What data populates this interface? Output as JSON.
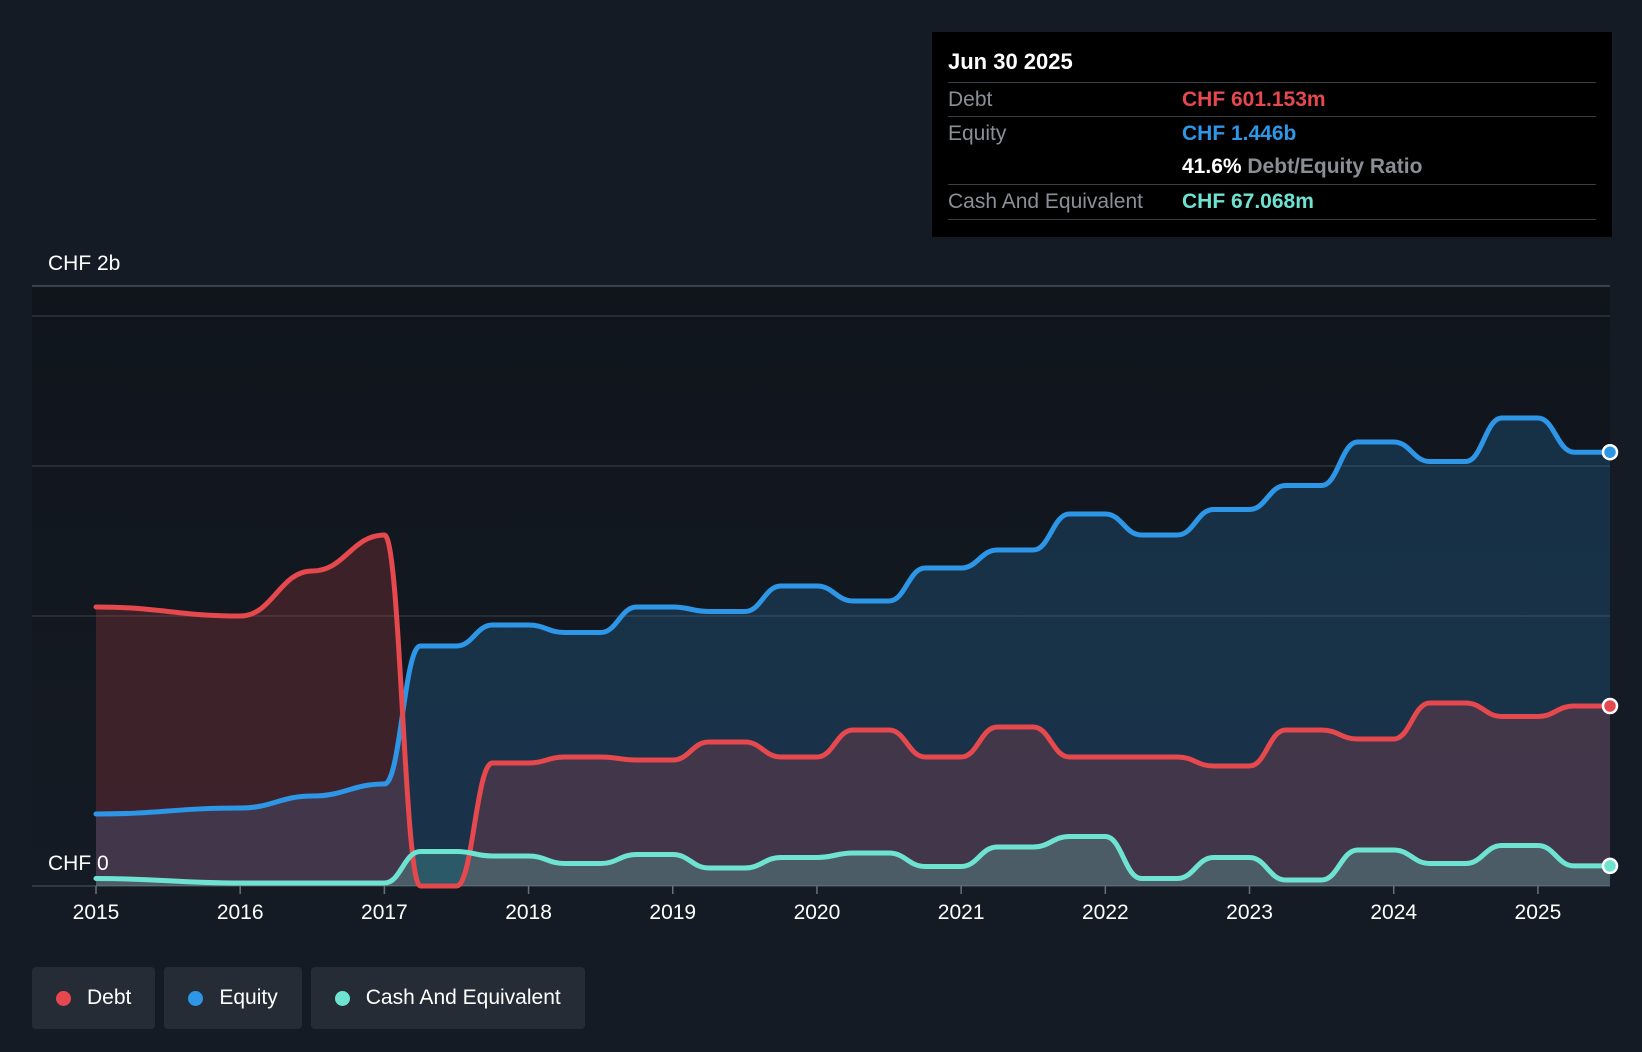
{
  "tooltip": {
    "date": "Jun 30 2025",
    "debt_label": "Debt",
    "debt_value": "CHF 601.153m",
    "equity_label": "Equity",
    "equity_value": "CHF 1.446b",
    "ratio_value": "41.6%",
    "ratio_label": "Debt/Equity Ratio",
    "cash_label": "Cash And Equivalent",
    "cash_value": "CHF 67.068m"
  },
  "legend": {
    "debt": "Debt",
    "equity": "Equity",
    "cash": "Cash And Equivalent"
  },
  "colors": {
    "debt": "#e5484d",
    "equity": "#2d96e6",
    "cash": "#6fe3d2",
    "background": "#151b24",
    "tooltip_bg": "#000000"
  },
  "chart_data": {
    "type": "area",
    "title": "",
    "xlabel": "",
    "ylabel": "",
    "ylim": [
      0,
      2.0
    ],
    "y_unit": "CHF b",
    "y_tick_labels": [
      {
        "value": 2.0,
        "label": "CHF 2b"
      },
      {
        "value": 0,
        "label": "CHF 0"
      }
    ],
    "gridlines": [
      1.9,
      1.4,
      0.9
    ],
    "x_ticks": [
      "2015",
      "2016",
      "2017",
      "2018",
      "2019",
      "2020",
      "2021",
      "2022",
      "2023",
      "2024",
      "2025"
    ],
    "xlim": [
      2015.0,
      2025.5
    ],
    "legend_position": "bottom-left",
    "grid": true,
    "series": [
      {
        "name": "Debt",
        "key": "debt",
        "points": [
          [
            2015.0,
            0.93
          ],
          [
            2016.0,
            0.9
          ],
          [
            2016.5,
            1.05
          ],
          [
            2017.0,
            1.17
          ],
          [
            2017.25,
            0.0
          ],
          [
            2017.5,
            0.0
          ],
          [
            2017.75,
            0.41
          ],
          [
            2018.0,
            0.41
          ],
          [
            2018.25,
            0.43
          ],
          [
            2018.5,
            0.43
          ],
          [
            2018.75,
            0.42
          ],
          [
            2019.0,
            0.42
          ],
          [
            2019.25,
            0.48
          ],
          [
            2019.5,
            0.48
          ],
          [
            2019.75,
            0.43
          ],
          [
            2020.0,
            0.43
          ],
          [
            2020.25,
            0.52
          ],
          [
            2020.5,
            0.52
          ],
          [
            2020.75,
            0.43
          ],
          [
            2021.0,
            0.43
          ],
          [
            2021.25,
            0.53
          ],
          [
            2021.5,
            0.53
          ],
          [
            2021.75,
            0.43
          ],
          [
            2022.0,
            0.43
          ],
          [
            2022.25,
            0.43
          ],
          [
            2022.5,
            0.43
          ],
          [
            2022.75,
            0.4
          ],
          [
            2023.0,
            0.4
          ],
          [
            2023.25,
            0.52
          ],
          [
            2023.5,
            0.52
          ],
          [
            2023.75,
            0.49
          ],
          [
            2024.0,
            0.49
          ],
          [
            2024.25,
            0.61
          ],
          [
            2024.5,
            0.61
          ],
          [
            2024.75,
            0.565
          ],
          [
            2025.0,
            0.565
          ],
          [
            2025.25,
            0.6
          ],
          [
            2025.5,
            0.6
          ]
        ]
      },
      {
        "name": "Equity",
        "key": "equity",
        "points": [
          [
            2015.0,
            0.24
          ],
          [
            2016.0,
            0.26
          ],
          [
            2016.5,
            0.3
          ],
          [
            2017.0,
            0.34
          ],
          [
            2017.25,
            0.8
          ],
          [
            2017.5,
            0.8
          ],
          [
            2017.75,
            0.87
          ],
          [
            2018.0,
            0.87
          ],
          [
            2018.25,
            0.845
          ],
          [
            2018.5,
            0.845
          ],
          [
            2018.75,
            0.93
          ],
          [
            2019.0,
            0.93
          ],
          [
            2019.25,
            0.915
          ],
          [
            2019.5,
            0.915
          ],
          [
            2019.75,
            1.0
          ],
          [
            2020.0,
            1.0
          ],
          [
            2020.25,
            0.95
          ],
          [
            2020.5,
            0.95
          ],
          [
            2020.75,
            1.06
          ],
          [
            2021.0,
            1.06
          ],
          [
            2021.25,
            1.12
          ],
          [
            2021.5,
            1.12
          ],
          [
            2021.75,
            1.24
          ],
          [
            2022.0,
            1.24
          ],
          [
            2022.25,
            1.17
          ],
          [
            2022.5,
            1.17
          ],
          [
            2022.75,
            1.255
          ],
          [
            2023.0,
            1.255
          ],
          [
            2023.25,
            1.335
          ],
          [
            2023.5,
            1.335
          ],
          [
            2023.75,
            1.48
          ],
          [
            2024.0,
            1.48
          ],
          [
            2024.25,
            1.415
          ],
          [
            2024.5,
            1.415
          ],
          [
            2024.75,
            1.56
          ],
          [
            2025.0,
            1.56
          ],
          [
            2025.25,
            1.446
          ],
          [
            2025.5,
            1.446
          ]
        ]
      },
      {
        "name": "Cash And Equivalent",
        "key": "cash",
        "points": [
          [
            2015.0,
            0.025
          ],
          [
            2016.0,
            0.01
          ],
          [
            2016.5,
            0.01
          ],
          [
            2017.0,
            0.01
          ],
          [
            2017.25,
            0.115
          ],
          [
            2017.5,
            0.115
          ],
          [
            2017.75,
            0.1
          ],
          [
            2018.0,
            0.1
          ],
          [
            2018.25,
            0.075
          ],
          [
            2018.5,
            0.075
          ],
          [
            2018.75,
            0.105
          ],
          [
            2019.0,
            0.105
          ],
          [
            2019.25,
            0.06
          ],
          [
            2019.5,
            0.06
          ],
          [
            2019.75,
            0.095
          ],
          [
            2020.0,
            0.095
          ],
          [
            2020.25,
            0.11
          ],
          [
            2020.5,
            0.11
          ],
          [
            2020.75,
            0.065
          ],
          [
            2021.0,
            0.065
          ],
          [
            2021.25,
            0.13
          ],
          [
            2021.5,
            0.13
          ],
          [
            2021.75,
            0.165
          ],
          [
            2022.0,
            0.165
          ],
          [
            2022.25,
            0.025
          ],
          [
            2022.5,
            0.025
          ],
          [
            2022.75,
            0.095
          ],
          [
            2023.0,
            0.095
          ],
          [
            2023.25,
            0.02
          ],
          [
            2023.5,
            0.02
          ],
          [
            2023.75,
            0.12
          ],
          [
            2024.0,
            0.12
          ],
          [
            2024.25,
            0.075
          ],
          [
            2024.5,
            0.075
          ],
          [
            2024.75,
            0.135
          ],
          [
            2025.0,
            0.135
          ],
          [
            2025.25,
            0.067
          ],
          [
            2025.5,
            0.067
          ]
        ]
      }
    ]
  }
}
